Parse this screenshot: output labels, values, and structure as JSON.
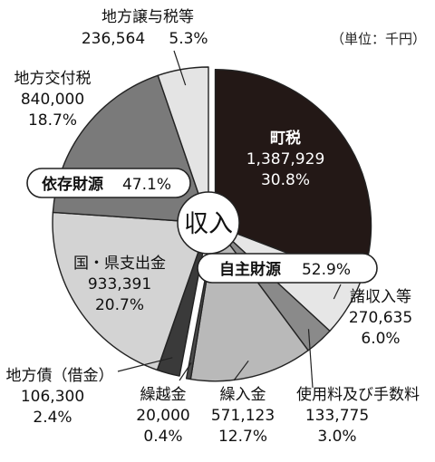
{
  "chart_data": {
    "type": "pie",
    "unit_label": "（単位：千円）",
    "center_label": "収入",
    "groups": [
      {
        "label": "依存財源",
        "percent_label": "47.1%"
      },
      {
        "label": "自主財源",
        "percent_label": "52.9%"
      }
    ],
    "slices": [
      {
        "name": "町税",
        "value_label": "1,387,929",
        "percent_label": "30.8%",
        "value": 1387929,
        "percent": 30.8,
        "group": "自主財源",
        "color": "#231816"
      },
      {
        "name": "諸収入等",
        "value_label": "270,635",
        "percent_label": "6.0%",
        "value": 270635,
        "percent": 6.0,
        "group": "自主財源",
        "color": "#e6e6e6"
      },
      {
        "name": "使用料及び手数料",
        "value_label": "133,775",
        "percent_label": "3.0%",
        "value": 133775,
        "percent": 3.0,
        "group": "自主財源",
        "color": "#8a8a8a"
      },
      {
        "name": "繰入金",
        "value_label": "571,123",
        "percent_label": "12.7%",
        "value": 571123,
        "percent": 12.7,
        "group": "自主財源",
        "color": "#b9b9b9"
      },
      {
        "name": "繰越金",
        "value_label": "20,000",
        "percent_label": "0.4%",
        "value": 20000,
        "percent": 0.4,
        "group": "自主財源",
        "color": "#4a4a4a"
      },
      {
        "name": "地方債（借金）",
        "value_label": "106,300",
        "percent_label": "2.4%",
        "value": 106300,
        "percent": 2.4,
        "group": "依存財源",
        "color": "#3a3a3a"
      },
      {
        "name": "国・県支出金",
        "value_label": "933,391",
        "percent_label": "20.7%",
        "value": 933391,
        "percent": 20.7,
        "group": "依存財源",
        "color": "#d3d3d3"
      },
      {
        "name": "地方交付税",
        "value_label": "840,000",
        "percent_label": "18.7%",
        "value": 840000,
        "percent": 18.7,
        "group": "依存財源",
        "color": "#7a7a7a"
      },
      {
        "name": "地方譲与税等",
        "value_label": "236,564",
        "percent_label": "5.3%",
        "value": 236564,
        "percent": 5.3,
        "group": "依存財源",
        "color": "#e4e4e4"
      }
    ]
  }
}
